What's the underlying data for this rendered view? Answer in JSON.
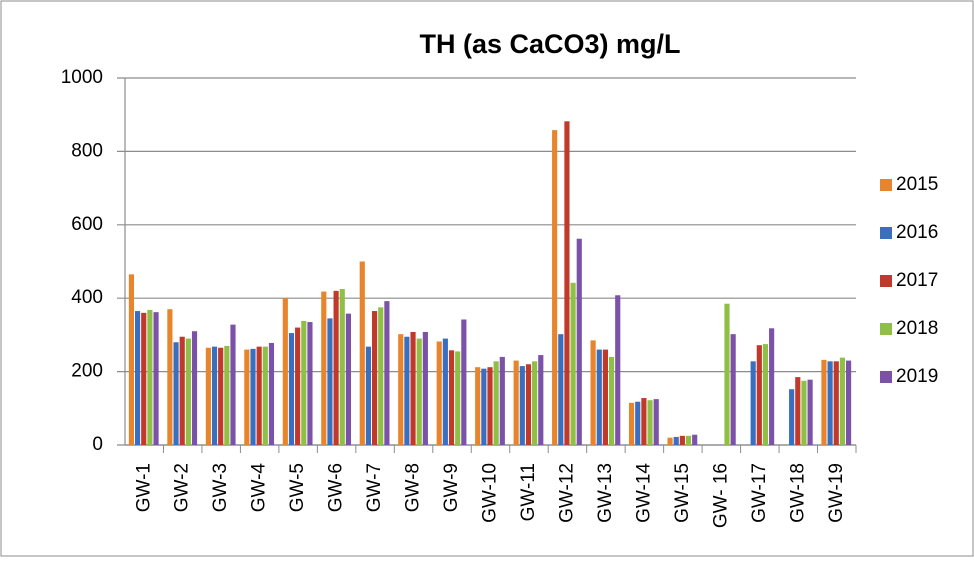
{
  "chart_data": {
    "type": "bar",
    "title": "TH (as CaCO3) mg/L",
    "categories": [
      "GW-1",
      "GW-2",
      "GW-3",
      "GW-4",
      "GW-5",
      "GW-6",
      "GW-7",
      "GW-8",
      "GW-9",
      "GW-10",
      "GW-11",
      "GW-12",
      "GW-13",
      "GW-14",
      "GW-15",
      "GW- 16",
      "GW-17",
      "GW-18",
      "GW-19"
    ],
    "series": [
      {
        "name": "2015",
        "color": "#e8842c",
        "values": [
          465,
          370,
          265,
          260,
          400,
          418,
          500,
          302,
          282,
          212,
          230,
          858,
          285,
          115,
          20,
          null,
          null,
          null,
          232
        ]
      },
      {
        "name": "2016",
        "color": "#3a6fc0",
        "values": [
          365,
          280,
          268,
          262,
          305,
          345,
          268,
          295,
          290,
          208,
          215,
          302,
          260,
          118,
          22,
          null,
          228,
          152,
          228
        ]
      },
      {
        "name": "2017",
        "color": "#c0392b",
        "values": [
          360,
          295,
          265,
          268,
          320,
          420,
          365,
          308,
          258,
          212,
          220,
          882,
          260,
          128,
          25,
          null,
          272,
          185,
          228
        ]
      },
      {
        "name": "2018",
        "color": "#8fbf45",
        "values": [
          368,
          290,
          270,
          268,
          338,
          425,
          375,
          290,
          255,
          228,
          228,
          442,
          240,
          122,
          25,
          385,
          275,
          175,
          238
        ]
      },
      {
        "name": "2019",
        "color": "#7b52a8",
        "values": [
          362,
          310,
          328,
          278,
          335,
          358,
          392,
          308,
          342,
          240,
          245,
          562,
          408,
          125,
          28,
          302,
          318,
          178,
          230
        ]
      }
    ],
    "ylim": [
      0,
      1000
    ],
    "yticks": [
      0,
      200,
      400,
      600,
      800,
      1000
    ],
    "grid": true,
    "legend": "right"
  }
}
